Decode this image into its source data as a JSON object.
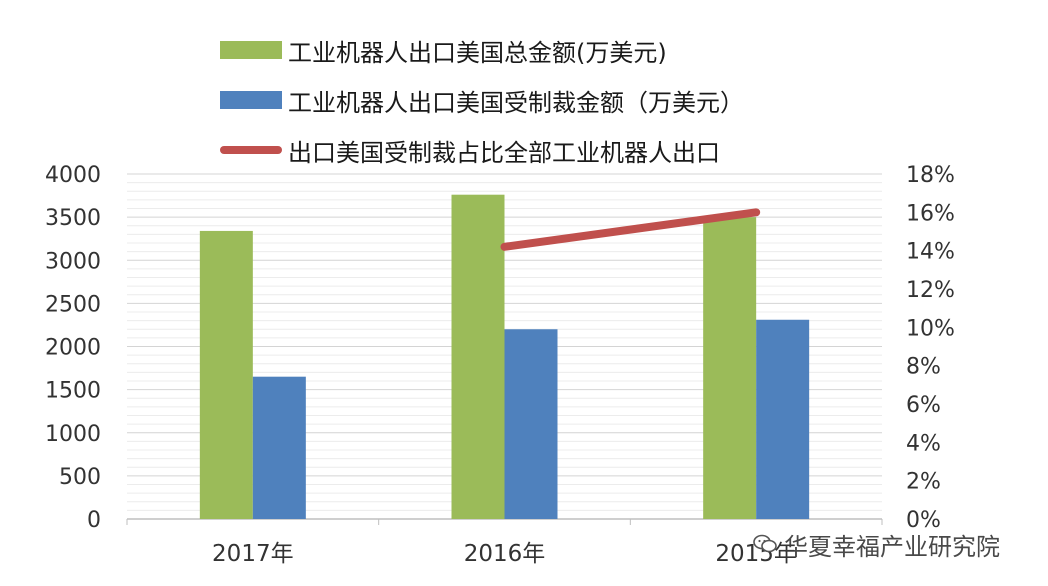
{
  "chart_data": {
    "type": "bar",
    "categories": [
      "2017年",
      "2016年",
      "2015年"
    ],
    "series": [
      {
        "name": "工业机器人出口美国总金额(万美元)",
        "type": "bar",
        "axis": "left",
        "color": "#9bbb59",
        "values": [
          3340,
          3760,
          3500
        ]
      },
      {
        "name": "工业机器人出口美国受制裁金额（万美元）",
        "type": "bar",
        "axis": "left",
        "color": "#4f81bd",
        "values": [
          1650,
          2200,
          2310
        ]
      },
      {
        "name": "出口美国受制裁占比全部工业机器人出口",
        "type": "line",
        "axis": "right",
        "color": "#c0504d",
        "values": [
          null,
          0.142,
          0.16
        ]
      }
    ],
    "y_left": {
      "min": 0,
      "max": 4000,
      "ticks": [
        0,
        500,
        1000,
        1500,
        2000,
        2500,
        3000,
        3500,
        4000
      ]
    },
    "y_right": {
      "min": 0,
      "max": 0.18,
      "ticks": [
        "0%",
        "2%",
        "4%",
        "6%",
        "8%",
        "10%",
        "12%",
        "14%",
        "16%",
        "18%"
      ]
    },
    "grid": true,
    "legend_position": "top"
  },
  "watermark": {
    "text": "华夏幸福产业研究院",
    "icon": "wechat-icon"
  }
}
